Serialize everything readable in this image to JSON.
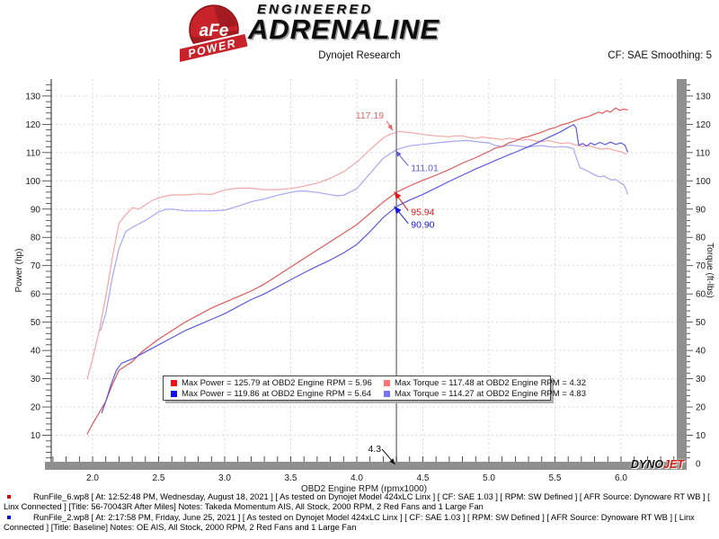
{
  "header": {
    "brand": {
      "badge_text": "aFe",
      "badge_sub": "POWER",
      "line1": "ENGINEERED",
      "line2": "ADRENALINE"
    },
    "title": "Dynojet Research",
    "smoothing": "CF: SAE Smoothing: 5"
  },
  "chart_data": {
    "type": "line",
    "xlabel": "OBD2 Engine RPM (rpmx1000)",
    "ylabel_left": "Power (hp)",
    "ylabel_right": "Torque (ft-lbs)",
    "xlim": [
      1.687,
      6.422
    ],
    "ylim": [
      0,
      136
    ],
    "x_ticks": [
      2.0,
      2.5,
      3.0,
      3.5,
      4.0,
      4.5,
      5.0,
      5.5,
      6.0
    ],
    "x_tick_labels": [
      "2.0",
      "2.5",
      "3.0",
      "3.5",
      "4.0",
      "4.5",
      "5.0",
      "5.5",
      "6.0"
    ],
    "y_ticks": [
      10,
      20,
      30,
      40,
      50,
      60,
      70,
      80,
      90,
      100,
      110,
      120,
      130
    ],
    "zero_label": "0",
    "grid": true,
    "cursor_x": 4.3,
    "cursor_label": "4.3",
    "series": [
      {
        "name": "torque-after",
        "color": "#f2a6a6",
        "width": 1.2,
        "points": [
          [
            1.96,
            30
          ],
          [
            2.0,
            37
          ],
          [
            2.05,
            47
          ],
          [
            2.1,
            59
          ],
          [
            2.15,
            73
          ],
          [
            2.2,
            85
          ],
          [
            2.25,
            88
          ],
          [
            2.3,
            90.5
          ],
          [
            2.35,
            90
          ],
          [
            2.4,
            91.5
          ],
          [
            2.45,
            93
          ],
          [
            2.5,
            94
          ],
          [
            2.6,
            95
          ],
          [
            2.7,
            95
          ],
          [
            2.8,
            95.4
          ],
          [
            2.9,
            95.2
          ],
          [
            3.0,
            96.8
          ],
          [
            3.1,
            97.4
          ],
          [
            3.2,
            97.4
          ],
          [
            3.3,
            96.9
          ],
          [
            3.4,
            96.9
          ],
          [
            3.5,
            97.3
          ],
          [
            3.6,
            98.1
          ],
          [
            3.7,
            99.2
          ],
          [
            3.8,
            100.9
          ],
          [
            3.9,
            103.2
          ],
          [
            4.0,
            106.6
          ],
          [
            4.1,
            111
          ],
          [
            4.2,
            115.2
          ],
          [
            4.25,
            116.4
          ],
          [
            4.32,
            117.48
          ],
          [
            4.4,
            117.1
          ],
          [
            4.5,
            116.4
          ],
          [
            4.6,
            115.9
          ],
          [
            4.7,
            115.6
          ],
          [
            4.75,
            115.9
          ],
          [
            4.8,
            115.9
          ],
          [
            4.85,
            115.3
          ],
          [
            4.9,
            115.1
          ],
          [
            4.95,
            115.5
          ],
          [
            5.0,
            115.2
          ],
          [
            5.05,
            114.9
          ],
          [
            5.1,
            114.6
          ],
          [
            5.15,
            115.1
          ],
          [
            5.2,
            114.8
          ],
          [
            5.25,
            114.4
          ],
          [
            5.3,
            114.7
          ],
          [
            5.35,
            114.1
          ],
          [
            5.4,
            113.9
          ],
          [
            5.45,
            114.3
          ],
          [
            5.5,
            113.7
          ],
          [
            5.55,
            113.2
          ],
          [
            5.6,
            113.5
          ],
          [
            5.65,
            112.8
          ],
          [
            5.7,
            112.2
          ],
          [
            5.75,
            112.5
          ],
          [
            5.8,
            111.8
          ],
          [
            5.85,
            111.2
          ],
          [
            5.9,
            111.5
          ],
          [
            5.95,
            110.8
          ],
          [
            6.0,
            110.3
          ],
          [
            6.04,
            109.4
          ]
        ]
      },
      {
        "name": "torque-baseline",
        "color": "#a6a6f2",
        "width": 1.2,
        "points": [
          [
            2.06,
            47
          ],
          [
            2.1,
            53
          ],
          [
            2.15,
            66
          ],
          [
            2.2,
            76
          ],
          [
            2.25,
            82
          ],
          [
            2.3,
            83.5
          ],
          [
            2.4,
            86
          ],
          [
            2.5,
            89
          ],
          [
            2.55,
            89.9
          ],
          [
            2.6,
            90
          ],
          [
            2.7,
            89.4
          ],
          [
            2.8,
            89.4
          ],
          [
            2.9,
            89.4
          ],
          [
            3.0,
            89.6
          ],
          [
            3.1,
            91
          ],
          [
            3.2,
            92.6
          ],
          [
            3.3,
            93.6
          ],
          [
            3.4,
            94.9
          ],
          [
            3.5,
            95.9
          ],
          [
            3.55,
            96.3
          ],
          [
            3.6,
            96.4
          ],
          [
            3.7,
            95.9
          ],
          [
            3.8,
            95.1
          ],
          [
            3.85,
            94.7
          ],
          [
            3.9,
            94.9
          ],
          [
            4.0,
            97.2
          ],
          [
            4.1,
            102.6
          ],
          [
            4.2,
            108
          ],
          [
            4.3,
            111.01
          ],
          [
            4.4,
            112.4
          ],
          [
            4.5,
            112.9
          ],
          [
            4.6,
            113.4
          ],
          [
            4.7,
            113.9
          ],
          [
            4.83,
            114.27
          ],
          [
            4.9,
            113.9
          ],
          [
            5.0,
            113.4
          ],
          [
            5.05,
            112.5
          ],
          [
            5.1,
            112.1
          ],
          [
            5.15,
            112.6
          ],
          [
            5.2,
            112.5
          ],
          [
            5.25,
            112.1
          ],
          [
            5.3,
            111.9
          ],
          [
            5.35,
            112.3
          ],
          [
            5.4,
            112.5
          ],
          [
            5.45,
            112.1
          ],
          [
            5.5,
            111.9
          ],
          [
            5.55,
            112.1
          ],
          [
            5.6,
            111.9
          ],
          [
            5.64,
            111.4
          ],
          [
            5.66,
            108.5
          ],
          [
            5.69,
            104.6
          ],
          [
            5.72,
            104.1
          ],
          [
            5.76,
            103.1
          ],
          [
            5.8,
            102.1
          ],
          [
            5.84,
            101.4
          ],
          [
            5.87,
            101.7
          ],
          [
            5.9,
            100.9
          ],
          [
            5.93,
            100.3
          ],
          [
            5.96,
            100.5
          ],
          [
            6.0,
            99.1
          ],
          [
            6.02,
            98.7
          ],
          [
            6.04,
            96.8
          ],
          [
            6.05,
            95.3
          ]
        ]
      },
      {
        "name": "power-after",
        "color": "#dd5a5a",
        "width": 1.2,
        "points": [
          [
            1.96,
            10.5
          ],
          [
            2.0,
            14
          ],
          [
            2.05,
            18
          ],
          [
            2.1,
            22
          ],
          [
            2.15,
            28
          ],
          [
            2.2,
            33
          ],
          [
            2.25,
            34.5
          ],
          [
            2.3,
            36
          ],
          [
            2.35,
            38.5
          ],
          [
            2.4,
            40.5
          ],
          [
            2.5,
            44
          ],
          [
            2.6,
            47
          ],
          [
            2.7,
            50
          ],
          [
            2.8,
            52.5
          ],
          [
            2.9,
            55
          ],
          [
            3.0,
            57
          ],
          [
            3.1,
            59
          ],
          [
            3.2,
            61
          ],
          [
            3.3,
            63.5
          ],
          [
            3.4,
            66.5
          ],
          [
            3.5,
            69.5
          ],
          [
            3.6,
            72.5
          ],
          [
            3.7,
            75.5
          ],
          [
            3.8,
            78.5
          ],
          [
            3.9,
            81.5
          ],
          [
            4.0,
            84.5
          ],
          [
            4.1,
            88.5
          ],
          [
            4.2,
            92.5
          ],
          [
            4.3,
            95.94
          ],
          [
            4.4,
            98.2
          ],
          [
            4.5,
            100.2
          ],
          [
            4.6,
            102
          ],
          [
            4.7,
            104
          ],
          [
            4.8,
            106.3
          ],
          [
            4.9,
            108.2
          ],
          [
            5.0,
            110.4
          ],
          [
            5.05,
            111.6
          ],
          [
            5.1,
            112.1
          ],
          [
            5.15,
            113.4
          ],
          [
            5.2,
            114.1
          ],
          [
            5.25,
            115.2
          ],
          [
            5.3,
            115.7
          ],
          [
            5.35,
            116.5
          ],
          [
            5.4,
            117.2
          ],
          [
            5.45,
            118.2
          ],
          [
            5.5,
            118.8
          ],
          [
            5.55,
            119.8
          ],
          [
            5.6,
            120.4
          ],
          [
            5.65,
            121.3
          ],
          [
            5.7,
            122.1
          ],
          [
            5.75,
            122.7
          ],
          [
            5.8,
            123.7
          ],
          [
            5.83,
            124.3
          ],
          [
            5.86,
            123.9
          ],
          [
            5.89,
            124.8
          ],
          [
            5.92,
            124.3
          ],
          [
            5.96,
            125.79
          ],
          [
            5.99,
            124.9
          ],
          [
            6.02,
            125.4
          ],
          [
            6.05,
            125.1
          ]
        ]
      },
      {
        "name": "power-baseline",
        "color": "#5a5add",
        "width": 1.2,
        "points": [
          [
            2.07,
            18
          ],
          [
            2.1,
            22
          ],
          [
            2.14,
            28
          ],
          [
            2.18,
            33
          ],
          [
            2.22,
            35.5
          ],
          [
            2.3,
            37
          ],
          [
            2.4,
            39.5
          ],
          [
            2.5,
            42
          ],
          [
            2.6,
            44.5
          ],
          [
            2.7,
            47
          ],
          [
            2.8,
            49
          ],
          [
            2.9,
            51
          ],
          [
            3.0,
            53
          ],
          [
            3.1,
            55.5
          ],
          [
            3.2,
            58
          ],
          [
            3.3,
            60
          ],
          [
            3.4,
            62.5
          ],
          [
            3.5,
            65
          ],
          [
            3.6,
            67.5
          ],
          [
            3.7,
            69.8
          ],
          [
            3.8,
            72
          ],
          [
            3.9,
            74.5
          ],
          [
            4.0,
            77.5
          ],
          [
            4.1,
            82
          ],
          [
            4.2,
            87
          ],
          [
            4.3,
            90.9
          ],
          [
            4.4,
            93.2
          ],
          [
            4.5,
            95.2
          ],
          [
            4.6,
            97.5
          ],
          [
            4.7,
            99.8
          ],
          [
            4.8,
            102
          ],
          [
            4.9,
            104.2
          ],
          [
            5.0,
            106.2
          ],
          [
            5.05,
            107.2
          ],
          [
            5.1,
            108.2
          ],
          [
            5.15,
            109.2
          ],
          [
            5.2,
            110.1
          ],
          [
            5.25,
            111.1
          ],
          [
            5.3,
            112.1
          ],
          [
            5.35,
            113.1
          ],
          [
            5.4,
            114.2
          ],
          [
            5.45,
            115.3
          ],
          [
            5.5,
            116.4
          ],
          [
            5.55,
            117.5
          ],
          [
            5.6,
            118.9
          ],
          [
            5.64,
            119.86
          ],
          [
            5.66,
            118.8
          ],
          [
            5.68,
            112.6
          ],
          [
            5.71,
            113.2
          ],
          [
            5.74,
            112.3
          ],
          [
            5.77,
            113.4
          ],
          [
            5.8,
            112.7
          ],
          [
            5.84,
            113.6
          ],
          [
            5.88,
            112.8
          ],
          [
            5.92,
            113.7
          ],
          [
            5.96,
            112.9
          ],
          [
            6.0,
            113.4
          ],
          [
            6.03,
            112.6
          ],
          [
            6.05,
            110.2
          ]
        ]
      }
    ],
    "annotations": [
      {
        "text": "117.19",
        "color": "#e06868",
        "anchor": "end",
        "label": [
          4.205,
          122.0
        ],
        "from": [
          4.225,
          121.2
        ],
        "tip": [
          4.272,
          117.8
        ],
        "head": 7
      },
      {
        "text": "111.01",
        "color": "#5b5bd8",
        "anchor": "start",
        "label": [
          4.41,
          103.5
        ],
        "from": [
          4.39,
          105.3
        ],
        "tip": [
          4.295,
          110.6
        ],
        "head": 7
      },
      {
        "text": "95.94",
        "color": "#e01818",
        "anchor": "start",
        "label": [
          4.41,
          87.9
        ],
        "from": [
          4.39,
          89.4
        ],
        "tip": [
          4.283,
          96.2
        ],
        "head": 9
      },
      {
        "text": "90.90",
        "color": "#1818e0",
        "anchor": "start",
        "label": [
          4.41,
          83.4
        ],
        "from": [
          4.39,
          84.9
        ],
        "tip": [
          4.283,
          91.0
        ],
        "head": 9
      }
    ],
    "legend": [
      {
        "color": "#ee1111",
        "label": "Max Power = 125.79 at OBD2 Engine RPM = 5.96"
      },
      {
        "color": "#ff7373",
        "label": "Max Torque = 117.48 at OBD2 Engine RPM = 4.32"
      },
      {
        "color": "#1111ee",
        "label": "Max Power = 119.86 at OBD2 Engine RPM = 5.64"
      },
      {
        "color": "#7373ff",
        "label": "Max Torque = 114.27 at OBD2 Engine RPM = 4.83"
      }
    ]
  },
  "watermark": {
    "dyno": "DYNO",
    "jet": "JET"
  },
  "footer": {
    "runs": [
      {
        "color": "#cc0000",
        "text": "RunFile_6.wp8 [ At: 12:52:48 PM, Wednesday, August 18, 2021 ] [ As tested on Dynojet Model 424xLC Linx ] [ CF: SAE 1.03 ] [ RPM: SW Defined ] [ AFR Source: Dynoware RT WB ] [ Linx Connected ] [Title: 56-70043R After Miles]  Notes: Takeda Momentum AIS, All Stock, 2000 RPM, 2 Red Fans and 1 Large Fan"
      },
      {
        "color": "#0000cc",
        "text": "RunFile_2.wp8 [ At: 2:17:58 PM, Friday, June 25, 2021 ] [ As tested on Dynojet Model 424xLC Linx ] [ CF: SAE 1.03 ] [ RPM: SW Defined ] [ AFR Source: Dynoware RT WB ] [ Linx Connected ] [Title: Baseline]  Notes: OE AIS, All Stock, 2000 RPM, 2 Red Fans and 1 Large Fan"
      }
    ]
  }
}
